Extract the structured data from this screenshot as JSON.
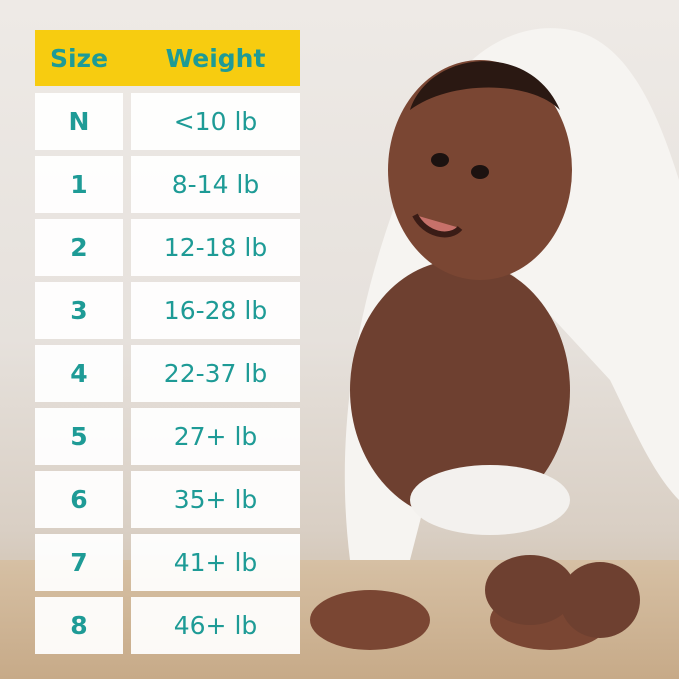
{
  "colors": {
    "header_bg": "#f7cc10",
    "text": "#1e9b96",
    "cell_bg": "#ffffff"
  },
  "table": {
    "headers": {
      "size": "Size",
      "weight": "Weight"
    },
    "rows": [
      {
        "size": "N",
        "weight": "<10 lb"
      },
      {
        "size": "1",
        "weight": "8-14 lb"
      },
      {
        "size": "2",
        "weight": "12-18 lb"
      },
      {
        "size": "3",
        "weight": "16-28 lb"
      },
      {
        "size": "4",
        "weight": "22-37 lb"
      },
      {
        "size": "5",
        "weight": "27+ lb"
      },
      {
        "size": "6",
        "weight": "35+ lb"
      },
      {
        "size": "7",
        "weight": "41+ lb"
      },
      {
        "size": "8",
        "weight": "46+ lb"
      }
    ]
  }
}
